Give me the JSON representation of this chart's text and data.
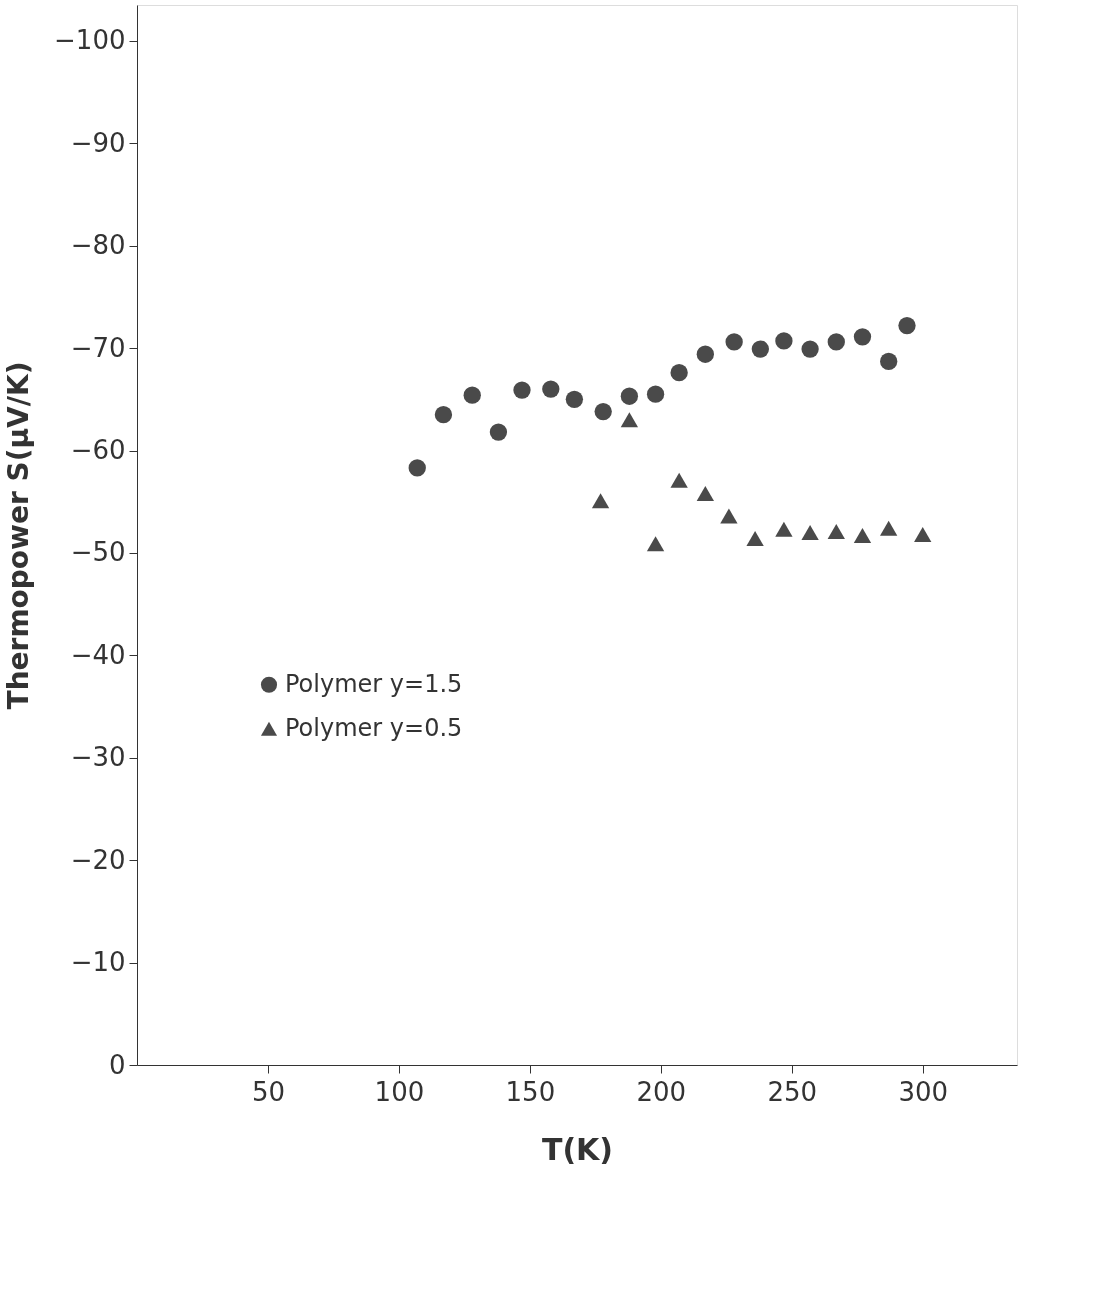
{
  "chart_data": {
    "type": "scatter",
    "xlabel": "T(K)",
    "ylabel": "Thermopower  S(μV/K)",
    "xlim": [
      0,
      336
    ],
    "xticks": [
      50,
      100,
      150,
      200,
      250,
      300
    ],
    "ylim": [
      0,
      -103.5
    ],
    "yticks": [
      0,
      -10,
      -20,
      -30,
      -40,
      -50,
      -60,
      -70,
      -80,
      -90,
      -100
    ],
    "grid": false,
    "legend": "left",
    "series": [
      {
        "name": "Polymer  y=1.5",
        "color": "#4a4a4a",
        "marker": "circle",
        "x": [
          107,
          117,
          128,
          138,
          147,
          158,
          167,
          178,
          188,
          198,
          207,
          217,
          228,
          238,
          247,
          257,
          267,
          277,
          287,
          294
        ],
        "values": [
          -58.3,
          -63.5,
          -65.4,
          -61.8,
          -65.9,
          -66.0,
          -65.0,
          -63.8,
          -65.3,
          -65.5,
          -67.6,
          -69.4,
          -70.6,
          -69.9,
          -70.7,
          -69.9,
          -70.6,
          -71.1,
          -68.7,
          -72.2
        ]
      },
      {
        "name": "Polymer  y=0.5",
        "color": "#4a4a4a",
        "marker": "triangle",
        "x": [
          177,
          188,
          198,
          207,
          217,
          226,
          236,
          247,
          257,
          267,
          277,
          287,
          300
        ],
        "values": [
          -55.1,
          -63.0,
          -50.9,
          -57.1,
          -55.8,
          -53.6,
          -51.4,
          -52.3,
          -52.0,
          -52.1,
          -51.7,
          -52.4,
          -51.8
        ]
      }
    ]
  }
}
